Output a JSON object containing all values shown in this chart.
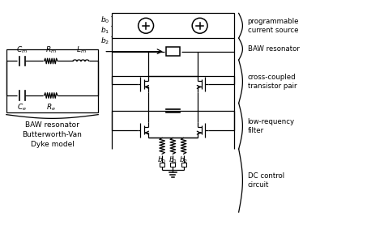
{
  "bg_color": "#ffffff",
  "line_color": "#000000",
  "fig_width": 4.74,
  "fig_height": 2.88,
  "labels": {
    "prog_current": "programmable\ncurrent source",
    "baw_res": "BAW resonator",
    "cross_coupled": "cross-coupled\ntransistor pair",
    "low_freq": "low-requency\nfilter",
    "dc_control": "DC control\ncircuit",
    "baw_model": "BAW resonator\nButterworth-Van\nDyke model"
  }
}
